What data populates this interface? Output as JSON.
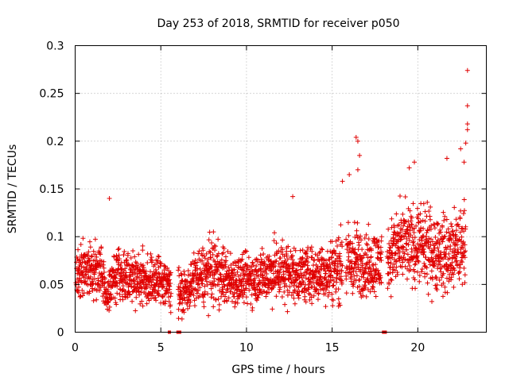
{
  "chart_data": {
    "type": "scatter",
    "title": "Day 253 of 2018, SRMTID for receiver p050",
    "xlabel": "GPS time / hours",
    "ylabel": "SRMTID / TECUs",
    "xlim": [
      0,
      24
    ],
    "ylim": [
      0,
      0.3
    ],
    "xticks": [
      0,
      5,
      10,
      15,
      20
    ],
    "xtick_labels": [
      "0",
      "5",
      "10",
      "15",
      "20"
    ],
    "yticks": [
      0,
      0.05,
      0.1,
      0.15,
      0.2,
      0.25,
      0.3
    ],
    "ytick_labels": [
      "0",
      "0.05",
      "0.1",
      "0.15",
      "0.2",
      "0.25",
      "0.3"
    ],
    "grid": true,
    "color": "#e00000",
    "marker": "plus",
    "trend": [
      {
        "x": 0.0,
        "y": 0.05,
        "spread": 0.02
      },
      {
        "x": 0.5,
        "y": 0.07,
        "spread": 0.02
      },
      {
        "x": 1.0,
        "y": 0.065,
        "spread": 0.02
      },
      {
        "x": 1.5,
        "y": 0.07,
        "spread": 0.02
      },
      {
        "x": 1.8,
        "y": 0.035,
        "spread": 0.012
      },
      {
        "x": 2.5,
        "y": 0.065,
        "spread": 0.02
      },
      {
        "x": 3.0,
        "y": 0.06,
        "spread": 0.02
      },
      {
        "x": 4.0,
        "y": 0.055,
        "spread": 0.02
      },
      {
        "x": 5.0,
        "y": 0.055,
        "spread": 0.02
      },
      {
        "x": 5.5,
        "y": 0.05,
        "spread": 0.02
      },
      {
        "x": 6.3,
        "y": 0.04,
        "spread": 0.015
      },
      {
        "x": 7.0,
        "y": 0.055,
        "spread": 0.02
      },
      {
        "x": 8.0,
        "y": 0.065,
        "spread": 0.025
      },
      {
        "x": 9.0,
        "y": 0.055,
        "spread": 0.02
      },
      {
        "x": 10.0,
        "y": 0.055,
        "spread": 0.02
      },
      {
        "x": 11.0,
        "y": 0.06,
        "spread": 0.02
      },
      {
        "x": 12.0,
        "y": 0.065,
        "spread": 0.025
      },
      {
        "x": 13.0,
        "y": 0.06,
        "spread": 0.02
      },
      {
        "x": 14.0,
        "y": 0.06,
        "spread": 0.02
      },
      {
        "x": 15.0,
        "y": 0.065,
        "spread": 0.025
      },
      {
        "x": 16.0,
        "y": 0.075,
        "spread": 0.03
      },
      {
        "x": 17.0,
        "y": 0.07,
        "spread": 0.025
      },
      {
        "x": 18.0,
        "y": 0.075,
        "spread": 0.025
      },
      {
        "x": 19.0,
        "y": 0.09,
        "spread": 0.03
      },
      {
        "x": 20.0,
        "y": 0.09,
        "spread": 0.03
      },
      {
        "x": 21.0,
        "y": 0.085,
        "spread": 0.03
      },
      {
        "x": 22.0,
        "y": 0.08,
        "spread": 0.03
      },
      {
        "x": 22.8,
        "y": 0.095,
        "spread": 0.03
      }
    ],
    "data_gaps": [
      [
        5.6,
        6.0
      ],
      [
        15.6,
        15.8
      ],
      [
        17.9,
        18.2
      ]
    ],
    "outliers": [
      {
        "x": 2.0,
        "y": 0.14
      },
      {
        "x": 12.7,
        "y": 0.142
      },
      {
        "x": 16.4,
        "y": 0.204
      },
      {
        "x": 16.5,
        "y": 0.2
      },
      {
        "x": 16.6,
        "y": 0.185
      },
      {
        "x": 16.5,
        "y": 0.17
      },
      {
        "x": 16.0,
        "y": 0.165
      },
      {
        "x": 15.6,
        "y": 0.158
      },
      {
        "x": 19.8,
        "y": 0.178
      },
      {
        "x": 19.5,
        "y": 0.172
      },
      {
        "x": 21.7,
        "y": 0.182
      },
      {
        "x": 22.5,
        "y": 0.192
      },
      {
        "x": 22.7,
        "y": 0.178
      },
      {
        "x": 22.8,
        "y": 0.198
      },
      {
        "x": 22.9,
        "y": 0.218
      },
      {
        "x": 22.9,
        "y": 0.212
      },
      {
        "x": 22.9,
        "y": 0.237
      },
      {
        "x": 22.9,
        "y": 0.274
      }
    ],
    "gap_markers": [
      {
        "x": 5.5,
        "y": 0
      },
      {
        "x": 6.0,
        "y": 0
      },
      {
        "x": 6.1,
        "y": 0
      },
      {
        "x": 18.0,
        "y": 0
      },
      {
        "x": 18.1,
        "y": 0
      }
    ]
  }
}
